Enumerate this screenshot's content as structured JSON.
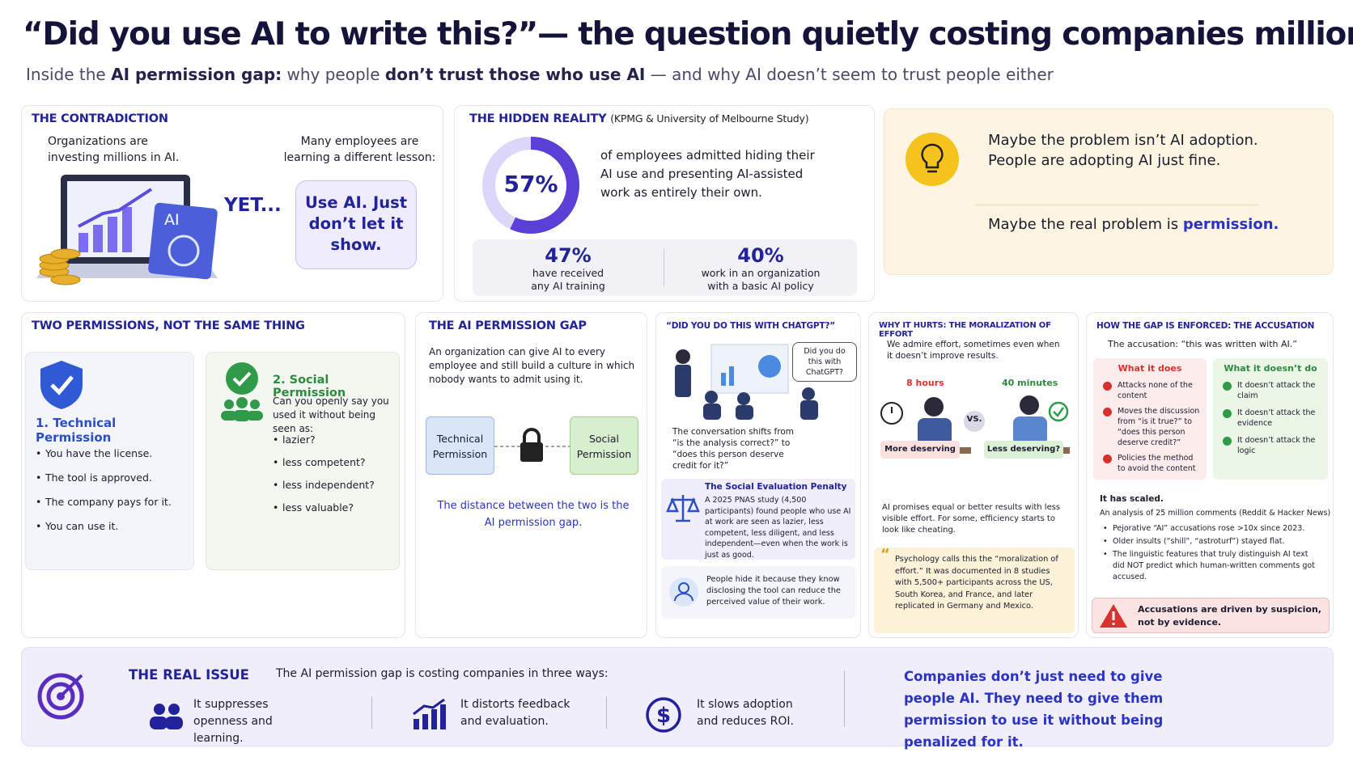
{
  "header": {
    "title": "“Did you use AI to write this?”— the question quietly costing companies millions",
    "subtitle": [
      "Inside the ",
      "AI permission gap:",
      " why people ",
      "don’t trust those who use AI",
      " — and why AI doesn’t seem to trust people either"
    ]
  },
  "contradiction": {
    "heading": "THE CONTRADICTION",
    "left": "Organizations are investing millions in AI.",
    "right": "Many employees are learning a different lesson:",
    "yet": "YET...",
    "bubble": "Use AI. Just don’t let it show.",
    "badge": "AI"
  },
  "hidden_reality": {
    "heading": "THE HIDDEN REALITY",
    "source": "(KPMG & University of Melbourne Study)",
    "ring": {
      "value": 57,
      "label": "57%"
    },
    "ring_text": "of employees admitted hiding their AI use and presenting AI-assisted work as entirely their own.",
    "stats": [
      {
        "label": "47%",
        "text": "have received any AI training"
      },
      {
        "label": "40%",
        "text": "work in an organization with a basic AI policy"
      }
    ]
  },
  "callout": {
    "line1": "Maybe the problem isn’t AI adoption. People are adopting AI just fine.",
    "line2": [
      "Maybe the real problem is ",
      "permission."
    ]
  },
  "two_permissions": {
    "heading": "TWO PERMISSIONS, NOT THE SAME THING",
    "technical": {
      "title": "1. Technical Permission",
      "items": [
        "You have the license.",
        "The tool is approved.",
        "The company pays for it.",
        "You can use it."
      ]
    },
    "social": {
      "title": "2. Social Permission",
      "intro": "Can you openly say you used it without being seen as:",
      "items": [
        "lazier?",
        "less competent?",
        "less independent?",
        "less valuable?"
      ]
    }
  },
  "gap": {
    "heading": "THE AI PERMISSION GAP",
    "text": "An organization can give AI to every employee and still build a culture in which nobody wants to admit using it.",
    "left": "Technical Permission",
    "right": "Social Permission",
    "caption": "The distance between the two is the AI permission gap."
  },
  "chatgpt": {
    "heading": "“DID YOU DO THIS WITH CHATGPT?”",
    "bubble": "Did you do this with ChatGPT?",
    "text": "The conversation shifts from “is the analysis correct?” to “does this person deserve credit for it?”",
    "penalty": {
      "title": "The Social Evaluation Penalty",
      "text": "A 2025 PNAS study (4,500 participants) found people who use AI at work are seen as lazier, less competent, less diligent, and less independent—even when the work is just as good."
    },
    "hide": "People hide it because they know disclosing the tool can reduce the perceived value of their work."
  },
  "moralization": {
    "heading": "WHY IT HURTS: THE MORALIZATION OF EFFORT",
    "text": "We admire effort, sometimes even when it doesn’t improve results.",
    "left": {
      "time": "8 hours",
      "label": "More deserving"
    },
    "vs": "VS.",
    "right": {
      "time": "40 minutes",
      "label": "Less deserving?"
    },
    "text2": "AI promises equal or better results with less visible effort. For some, efficiency starts to look like cheating.",
    "quote": "Psychology calls this the “moralization of effort.” It was documented in 8 studies with 5,500+ participants across the US, South Korea, and France, and later replicated in Germany and Mexico."
  },
  "accusation": {
    "heading": "HOW THE GAP IS ENFORCED: THE ACCUSATION",
    "intro": "The accusation: “this was written with AI.”",
    "does": {
      "title": "What it does",
      "items": [
        "Attacks none of the content",
        "Moves the discussion from “is it true?” to “does this person deserve credit?”",
        "Policies the method to avoid the content"
      ]
    },
    "doesnt": {
      "title": "What it doesn’t do",
      "items": [
        "It doesn’t attack the claim",
        "It doesn’t attack the evidence",
        "It doesn’t attack the logic"
      ]
    },
    "scaled": "It has scaled.",
    "analysis": "An analysis of 25 million comments (Reddit & Hacker News)",
    "bullets": [
      "Pejorative “AI” accusations rose >10x since 2023.",
      "Older insults (“shill”, “astroturf”) stayed flat.",
      "The linguistic features that truly distinguish AI text did NOT predict which human-written comments got accused."
    ],
    "warning": "Accusations are driven by suspicion, not by evidence."
  },
  "real_issue": {
    "heading": "THE REAL ISSUE",
    "intro": "The AI permission gap is costing companies in three ways:",
    "ways": [
      "It suppresses openness and learning.",
      "It distorts feedback and evaluation.",
      "It slows adoption and reduces ROI."
    ],
    "conclusion": "Companies don’t just need to give people AI. They need to give them permission to use it without being penalized for it."
  }
}
